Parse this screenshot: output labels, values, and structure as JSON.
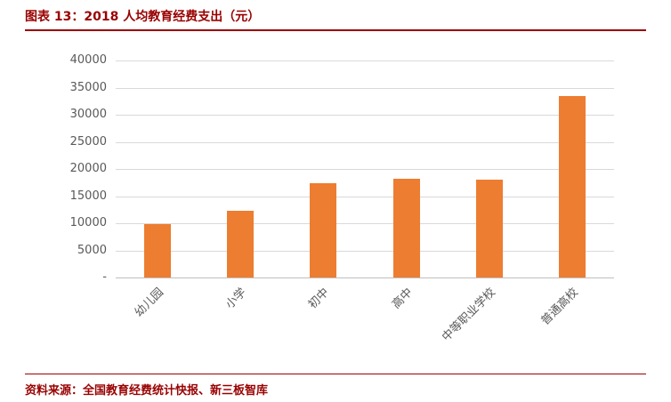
{
  "header": {
    "title": "图表 13：2018 人均教育经费支出（元）"
  },
  "footer": {
    "source": "资料来源：全国教育经费统计快报、新三板智库"
  },
  "colors": {
    "accent_red": "#990000",
    "bar_orange": "#ED7D31",
    "gridline": "#D9D9D9",
    "axis_text": "#595959"
  },
  "chart_data": {
    "type": "bar",
    "title": "2018 人均教育经费支出（元）",
    "categories": [
      "幼儿园",
      "小学",
      "初中",
      "高中",
      "中等职业学校",
      "普通高校"
    ],
    "values": [
      9800,
      12300,
      17400,
      18200,
      18000,
      33500
    ],
    "xlabel": "",
    "ylabel": "",
    "ylim": [
      0,
      40000
    ],
    "yticks": [
      0,
      5000,
      10000,
      15000,
      20000,
      25000,
      30000,
      35000,
      40000
    ],
    "ytick_labels": [
      "-",
      "5000",
      "10000",
      "15000",
      "20000",
      "25000",
      "30000",
      "35000",
      "40000"
    ],
    "grid": true,
    "legend": false
  }
}
